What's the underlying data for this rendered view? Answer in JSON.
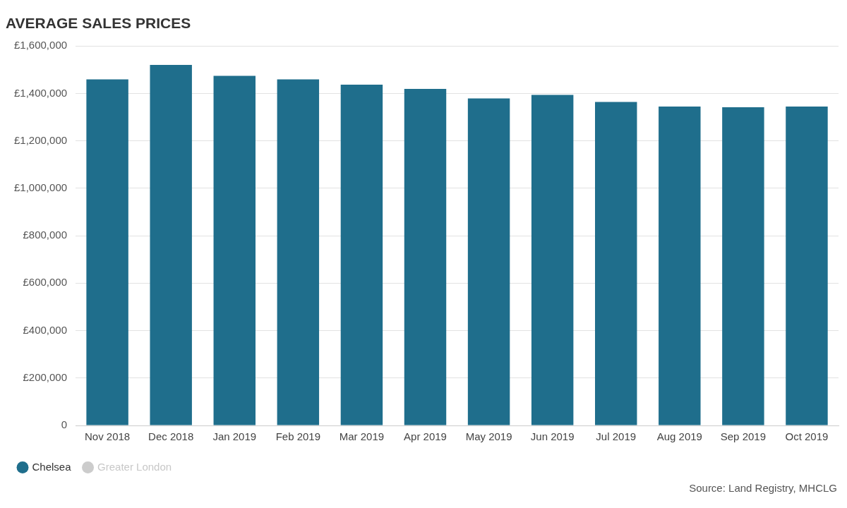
{
  "chart_data": {
    "type": "bar",
    "title": "AVERAGE SALES PRICES",
    "categories": [
      "Nov 2018",
      "Dec 2018",
      "Jan 2019",
      "Feb 2019",
      "Mar 2019",
      "Apr 2019",
      "May 2019",
      "Jun 2019",
      "Jul 2019",
      "Aug 2019",
      "Sep 2019",
      "Oct 2019"
    ],
    "series": [
      {
        "name": "Chelsea",
        "color": "#1f6e8c",
        "values": [
          1459000,
          1520000,
          1474000,
          1459000,
          1437000,
          1419000,
          1379000,
          1394000,
          1364000,
          1345000,
          1342000,
          1345000
        ]
      },
      {
        "name": "Greater London",
        "color": "#cccccc",
        "values": [
          null,
          null,
          null,
          null,
          null,
          null,
          null,
          null,
          null,
          null,
          null,
          null
        ]
      }
    ],
    "ylim": [
      0,
      1600000
    ],
    "yticks": [
      0,
      {
        "value": 200000,
        "label": "£200,000"
      },
      {
        "value": 400000,
        "label": "£400,000"
      },
      {
        "value": 600000,
        "label": "£600,000"
      },
      {
        "value": 800000,
        "label": "£800,000"
      },
      {
        "value": 1000000,
        "label": "£1,000,000"
      },
      {
        "value": 1200000,
        "label": "£1,200,000"
      },
      {
        "value": 1400000,
        "label": "£1,400,000"
      },
      {
        "value": 1600000,
        "label": "£1,600,000"
      }
    ],
    "grid": "y",
    "legend": "bottom left",
    "annotations": [
      "Source: Land Registry, MHCLG"
    ]
  }
}
